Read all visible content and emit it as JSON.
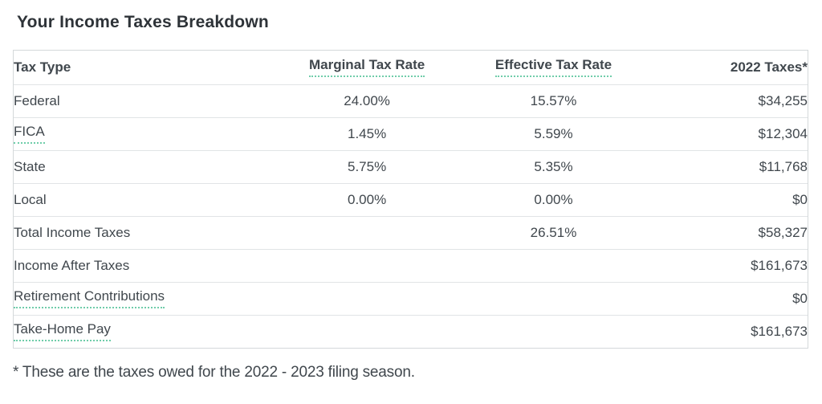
{
  "page": {
    "title": "Your Income Taxes Breakdown",
    "footnote": "* These are the taxes owed for the 2022 - 2023 filing season."
  },
  "colors": {
    "accent_green": "#2bb486",
    "dotted_underline_green": "#6fcdaa",
    "text_dark": "#40474d",
    "table_border": "#d4d8da"
  },
  "table": {
    "headers": {
      "tax_type": "Tax Type",
      "marginal": "Marginal Tax Rate",
      "effective": "Effective Tax Rate",
      "taxes_2022": "2022 Taxes*"
    },
    "rows": [
      {
        "label": "Federal",
        "marginal": "24.00%",
        "effective": "15.57%",
        "taxes": "$34,255"
      },
      {
        "label": "FICA",
        "marginal": "1.45%",
        "effective": "5.59%",
        "taxes": "$12,304"
      },
      {
        "label": "State",
        "marginal": "5.75%",
        "effective": "5.35%",
        "taxes": "$11,768"
      },
      {
        "label": "Local",
        "marginal": "0.00%",
        "effective": "0.00%",
        "taxes": "$0"
      },
      {
        "label": "Total Income Taxes",
        "marginal": "",
        "effective": "26.51%",
        "taxes": "$58,327"
      },
      {
        "label": "Income After Taxes",
        "marginal": "",
        "effective": "",
        "taxes": "$161,673"
      },
      {
        "label": "Retirement Contributions",
        "marginal": "",
        "effective": "",
        "taxes": "$0"
      },
      {
        "label": "Take-Home Pay",
        "marginal": "",
        "effective": "",
        "taxes": "$161,673"
      }
    ]
  }
}
